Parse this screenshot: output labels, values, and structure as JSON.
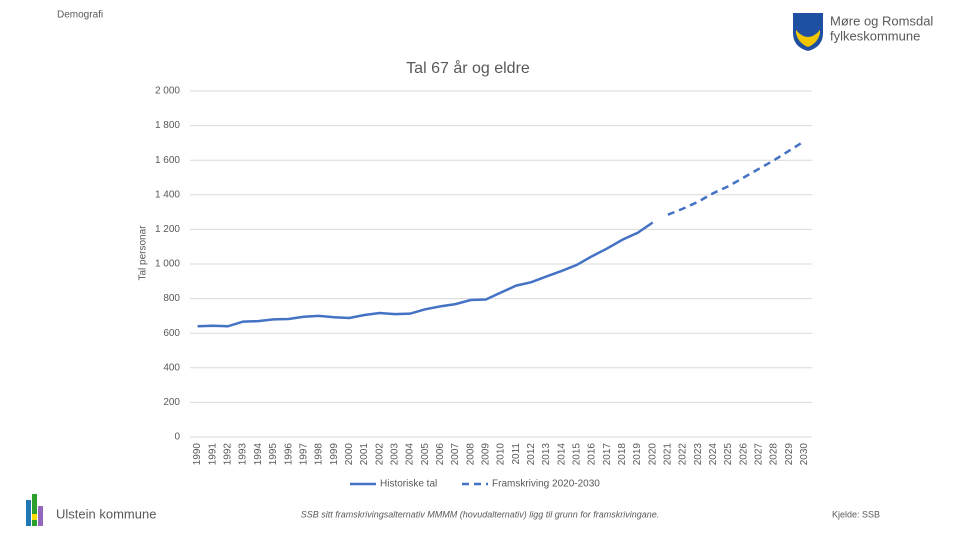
{
  "header": {
    "section": "Demografi",
    "logo_line1": "Møre og Romsdal",
    "logo_line2": "fylkeskommune"
  },
  "chart_data": {
    "type": "line",
    "title": "Tal 67 år og eldre",
    "y_label": "Tal personar",
    "categories": [
      "1990",
      "1991",
      "1992",
      "1993",
      "1994",
      "1995",
      "1996",
      "1997",
      "1998",
      "1999",
      "2000",
      "2001",
      "2002",
      "2003",
      "2004",
      "2005",
      "2006",
      "2007",
      "2008",
      "2009",
      "2010",
      "2011",
      "2012",
      "2013",
      "2014",
      "2015",
      "2016",
      "2017",
      "2018",
      "2019",
      "2020",
      "2021",
      "2022",
      "2023",
      "2024",
      "2025",
      "2026",
      "2027",
      "2028",
      "2029",
      "2030"
    ],
    "series": [
      {
        "name": "Historiske tal",
        "color": "#4472c4",
        "line_style": "solid",
        "values": [
          640,
          643,
          640,
          667,
          670,
          680,
          682,
          695,
          700,
          692,
          688,
          705,
          717,
          710,
          713,
          738,
          755,
          768,
          792,
          795,
          835,
          875,
          895,
          928,
          960,
          995,
          1045,
          1090,
          1140,
          1180,
          1240,
          null,
          null,
          null,
          null,
          null,
          null,
          null,
          null,
          null,
          null
        ]
      },
      {
        "name": "Framskriving 2020-2030",
        "color": "#4472c4",
        "line_style": "dashed",
        "values": [
          null,
          null,
          null,
          null,
          null,
          null,
          null,
          null,
          null,
          null,
          null,
          null,
          null,
          null,
          null,
          null,
          null,
          null,
          null,
          null,
          null,
          null,
          null,
          null,
          null,
          null,
          null,
          null,
          null,
          null,
          null,
          1285,
          1320,
          1360,
          1410,
          1450,
          1500,
          1550,
          1600,
          1655,
          1710
        ]
      }
    ],
    "ylim": [
      0,
      2000
    ],
    "yticks": [
      0,
      200,
      400,
      600,
      800,
      {
        "value": 1000,
        "label": "1 000"
      },
      {
        "value": 1200,
        "label": "1 200"
      },
      {
        "value": 1400,
        "label": "1 400"
      },
      {
        "value": 1600,
        "label": "1 600"
      },
      {
        "value": 1800,
        "label": "1 800"
      },
      {
        "value": 2000,
        "label": "2 000"
      }
    ],
    "grid": true,
    "legend": "bottom"
  },
  "footer": {
    "municipality": "Ulstein kommune",
    "note": "SSB sitt framskrivingsalternativ MMMM (hovudalternativ) ligg til grunn for framskrivingane.",
    "source": "Kjelde: SSB"
  }
}
